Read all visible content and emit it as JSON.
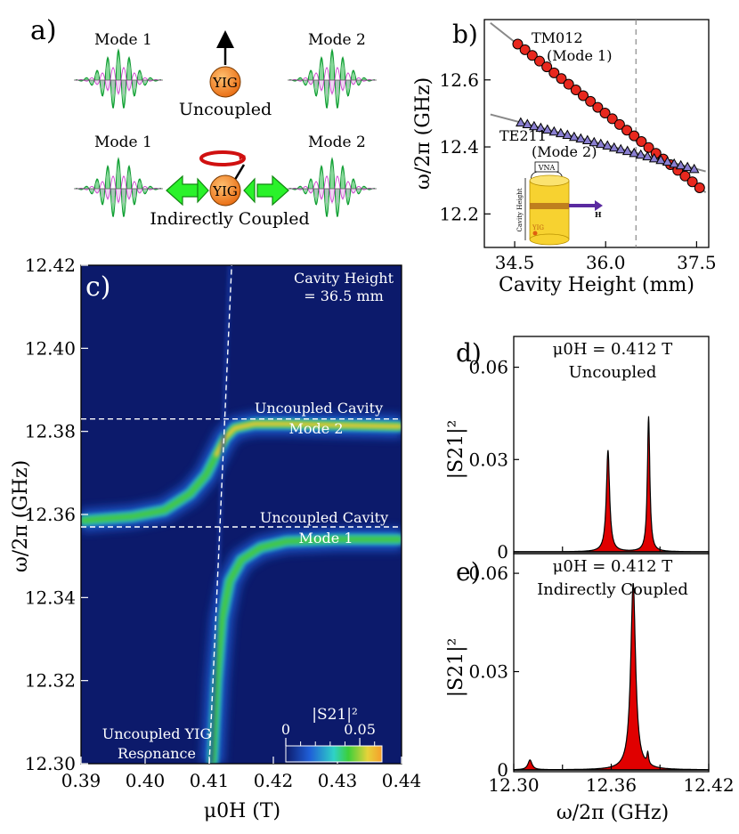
{
  "panel_a": {
    "label": "a)",
    "top": {
      "mode1": "Mode 1",
      "mode2": "Mode 2",
      "yig": "YIG",
      "caption": "Uncoupled"
    },
    "bottom": {
      "mode1": "Mode 1",
      "mode2": "Mode 2",
      "yig": "YIG",
      "caption": "Indirectly Coupled"
    }
  },
  "colors": {
    "marker_mode1": "#e8281e",
    "marker_mode2": "#8a7fd1",
    "yig": "#f08020",
    "arrow": "#22ee22",
    "peak_fill": "#e00000"
  },
  "chart_data": [
    {
      "id": "b",
      "type": "scatter",
      "label": "b)",
      "xlabel": "Cavity Height (mm)",
      "ylabel": "ω/2π (GHz)",
      "xlim": [
        34.0,
        37.7
      ],
      "ylim": [
        12.1,
        12.78
      ],
      "xticks": [
        34.5,
        36.0,
        37.5
      ],
      "xtick_labels": [
        "34.5",
        "36.0",
        "37.5"
      ],
      "yticks": [
        12.2,
        12.4,
        12.6
      ],
      "ytick_labels": [
        "12.2",
        "12.4",
        "12.6"
      ],
      "dashed_x": 36.5,
      "inset_labels": {
        "vna": "VNA",
        "height": "Cavity Height",
        "yig": "YIG",
        "h": "H"
      },
      "series": [
        {
          "name": "TM012",
          "name2": "(Mode 1)",
          "marker": "circle",
          "x": [
            34.55,
            34.67,
            34.79,
            34.91,
            35.03,
            35.15,
            35.27,
            35.39,
            35.51,
            35.63,
            35.75,
            35.87,
            35.99,
            36.11,
            36.23,
            36.35,
            36.47,
            36.59,
            36.71,
            36.83,
            36.95,
            37.07,
            37.19,
            37.31,
            37.43,
            37.55
          ],
          "y": [
            12.707,
            12.69,
            12.673,
            12.656,
            12.639,
            12.621,
            12.604,
            12.587,
            12.57,
            12.553,
            12.536,
            12.518,
            12.501,
            12.484,
            12.467,
            12.45,
            12.433,
            12.416,
            12.398,
            12.381,
            12.364,
            12.347,
            12.33,
            12.313,
            12.296,
            12.278
          ],
          "fit": [
            [
              34.1,
              12.77
            ],
            [
              37.65,
              12.264
            ]
          ]
        },
        {
          "name": "TE211",
          "name2": "(Mode 2)",
          "marker": "triangle",
          "x": [
            34.6,
            34.71,
            34.82,
            34.93,
            35.04,
            35.15,
            35.26,
            35.37,
            35.48,
            35.59,
            35.7,
            35.81,
            35.92,
            36.03,
            36.14,
            36.25,
            36.36,
            36.47,
            36.58,
            36.69,
            36.8,
            36.91,
            37.02,
            37.13,
            37.24,
            37.35,
            37.46
          ],
          "y": [
            12.473,
            12.468,
            12.462,
            12.457,
            12.452,
            12.446,
            12.441,
            12.436,
            12.43,
            12.425,
            12.42,
            12.414,
            12.409,
            12.404,
            12.398,
            12.393,
            12.388,
            12.382,
            12.377,
            12.372,
            12.366,
            12.361,
            12.356,
            12.35,
            12.345,
            12.34,
            12.334
          ],
          "fit": [
            [
              34.1,
              12.497
            ],
            [
              37.65,
              12.327
            ]
          ]
        }
      ]
    },
    {
      "id": "c",
      "type": "heatmap",
      "label": "c)",
      "xlabel": "μ0H (T)",
      "ylabel": "ω/2π (GHz)",
      "xlim": [
        0.39,
        0.44
      ],
      "ylim": [
        12.3,
        12.42
      ],
      "xticks": [
        0.39,
        0.4,
        0.41,
        0.42,
        0.43,
        0.44
      ],
      "xtick_labels": [
        "0.39",
        "0.40",
        "0.41",
        "0.42",
        "0.43",
        "0.44"
      ],
      "yticks": [
        12.3,
        12.32,
        12.34,
        12.36,
        12.38,
        12.4,
        12.42
      ],
      "ytick_labels": [
        "12.30",
        "12.32",
        "12.34",
        "12.36",
        "12.38",
        "12.40",
        "12.42"
      ],
      "cavity_mode2": 12.383,
      "cavity_mode1": 12.357,
      "yig_line": [
        [
          0.41,
          12.3
        ],
        [
          0.4135,
          12.42
        ]
      ],
      "upper_branch": {
        "x": [
          0.39,
          0.398,
          0.403,
          0.407,
          0.4095,
          0.411,
          0.4125,
          0.414,
          0.417,
          0.422,
          0.43,
          0.44
        ],
        "y": [
          12.3585,
          12.3595,
          12.361,
          12.365,
          12.3695,
          12.374,
          12.3785,
          12.3808,
          12.3818,
          12.3818,
          12.3815,
          12.3812
        ]
      },
      "lower_branch": {
        "x": [
          0.4105,
          0.4112,
          0.412,
          0.4132,
          0.415,
          0.418,
          0.422,
          0.43,
          0.44
        ],
        "y": [
          12.3,
          12.32,
          12.335,
          12.344,
          12.349,
          12.352,
          12.3535,
          12.354,
          12.354
        ]
      },
      "flat_top": {
        "x": [
          0.39,
          0.412
        ],
        "y": 12.3818
      },
      "annotations": {
        "cavity_height_line1": "Cavity Height",
        "cavity_height_line2": "= 36.5 mm",
        "uc_mode2_line1": "Uncoupled Cavity",
        "uc_mode2_line2": "Mode 2",
        "uc_mode1_line1": "Uncoupled Cavity",
        "uc_mode1_line2": "Mode 1",
        "yig_line1": "Uncoupled YIG",
        "yig_line2": "Resonance"
      },
      "colorbar": {
        "label": "|S21|²",
        "range": [
          0,
          0.065
        ],
        "ticks": [
          0,
          0.05
        ],
        "tick_labels": [
          "0",
          "0.05"
        ]
      }
    },
    {
      "id": "d",
      "type": "area",
      "label": "d)",
      "title_line1": "μ0H = 0.412 T",
      "title_line2": "Uncoupled",
      "ylabel": "|S21|²",
      "xlim": [
        12.3,
        12.42
      ],
      "ylim": [
        0,
        0.07
      ],
      "yticks": [
        0,
        0.03,
        0.06
      ],
      "ytick_labels": [
        "0",
        "0.03",
        "0.06"
      ],
      "peaks": [
        {
          "x": 12.358,
          "height": 0.033,
          "width": 0.0012
        },
        {
          "x": 12.383,
          "height": 0.044,
          "width": 0.0009
        }
      ]
    },
    {
      "id": "e",
      "type": "area",
      "label": "e)",
      "title_line1": "μ0H = 0.412 T",
      "title_line2": "Indirectly Coupled",
      "xlabel": "ω/2π (GHz)",
      "ylabel": "|S21|²",
      "xlim": [
        12.3,
        12.42
      ],
      "ylim": [
        0,
        0.066
      ],
      "xticks": [
        12.3,
        12.36,
        12.42
      ],
      "xtick_labels": [
        "12.30",
        "12.36",
        "12.42"
      ],
      "yticks": [
        0,
        0.03,
        0.06
      ],
      "ytick_labels": [
        "0",
        "0.03",
        "0.06"
      ],
      "peaks": [
        {
          "x": 12.31,
          "height": 0.003,
          "width": 0.0015
        },
        {
          "x": 12.3735,
          "height": 0.057,
          "width": 0.0018
        },
        {
          "x": 12.3825,
          "height": 0.0035,
          "width": 0.0006
        }
      ]
    }
  ]
}
